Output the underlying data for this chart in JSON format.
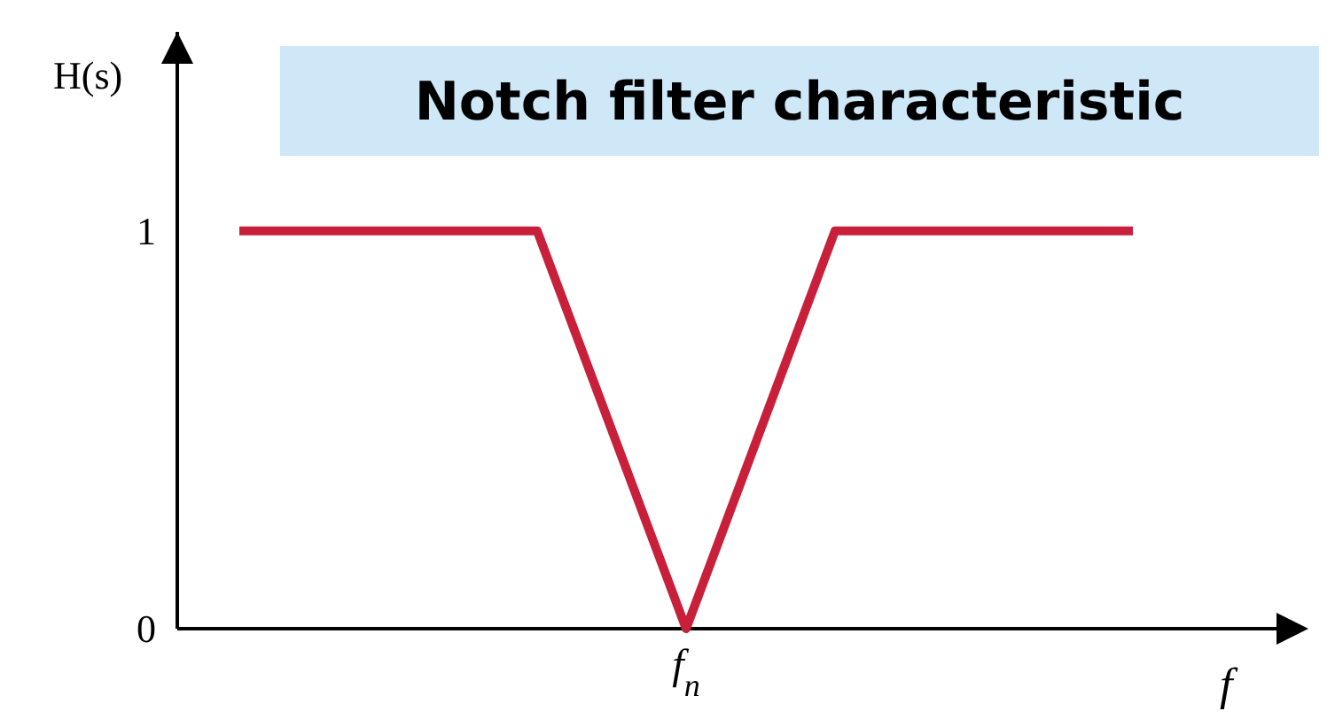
{
  "chart_data": {
    "type": "line",
    "title": "Notch filter characteristic",
    "xlabel": "f",
    "ylabel": "H(s)",
    "categories": [
      null,
      null,
      null,
      "f$_{n}$",
      null,
      null,
      null
    ],
    "series": [
      {
        "color": "#c8203a",
        "values": [
          1,
          1,
          1,
          0,
          1,
          1,
          1
        ]
      }
    ],
    "ylim": [
      0,
      1.5
    ],
    "yticks": [
      0,
      1
    ],
    "grid": false,
    "line_style": "solid"
  }
}
